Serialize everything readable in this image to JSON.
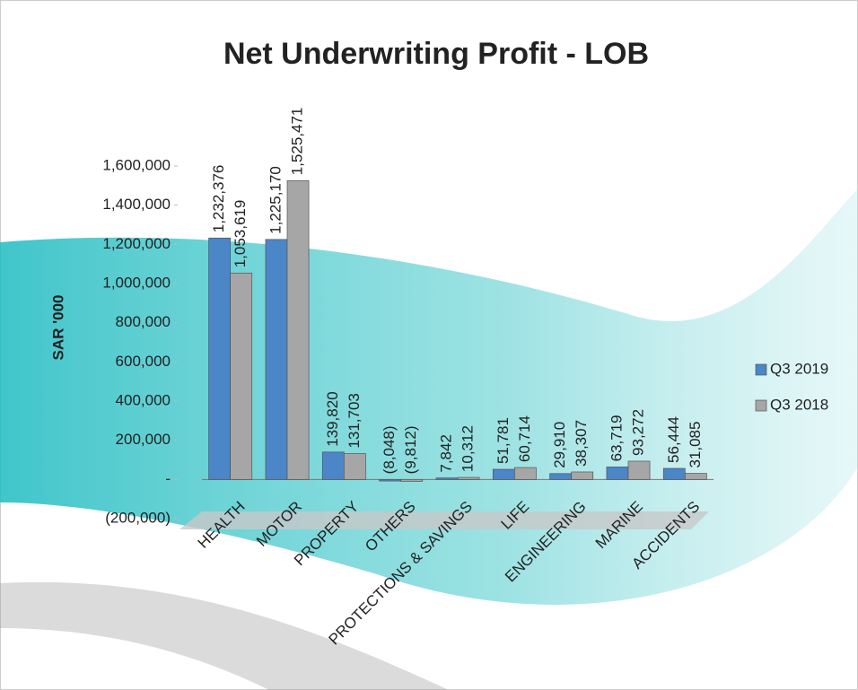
{
  "chart_data": {
    "type": "bar",
    "title": "Net Underwriting Profit - LOB",
    "y_label": "SAR '000",
    "categories": [
      "HEALTH",
      "MOTOR",
      "PROPERTY",
      "OTHERS",
      "PROTECTIONS & SAVINGS",
      "LIFE",
      "ENGINEERING",
      "MARINE",
      "ACCIDENTS"
    ],
    "series": [
      {
        "name": "Q3 2019",
        "color": "#4a86c8",
        "values": [
          1232376,
          1225170,
          139820,
          -8048,
          7842,
          51781,
          29910,
          63719,
          56444
        ],
        "value_labels": [
          "1,232,376",
          "1,225,170",
          "139,820",
          "(8,048)",
          "7,842",
          "51,781",
          "29,910",
          "63,719",
          "56,444"
        ]
      },
      {
        "name": "Q3 2018",
        "color": "#a6a6a6",
        "values": [
          1053619,
          1525471,
          131703,
          -9812,
          10312,
          60714,
          38307,
          93272,
          31085
        ],
        "value_labels": [
          "1,053,619",
          "1,525,471",
          "131,703",
          "(9,812)",
          "10,312",
          "60,714",
          "38,307",
          "93,272",
          "31,085"
        ]
      }
    ],
    "ylim": [
      -200000,
      1600000
    ],
    "yticks": [
      {
        "value": -200000,
        "label": "(200,000)"
      },
      {
        "value": 0,
        "label": "-"
      },
      {
        "value": 200000,
        "label": "200,000"
      },
      {
        "value": 400000,
        "label": "400,000"
      },
      {
        "value": 600000,
        "label": "600,000"
      },
      {
        "value": 800000,
        "label": "800,000"
      },
      {
        "value": 1000000,
        "label": "1,000,000"
      },
      {
        "value": 1200000,
        "label": "1,200,000"
      },
      {
        "value": 1400000,
        "label": "1,400,000"
      },
      {
        "value": 1600000,
        "label": "1,600,000"
      }
    ],
    "legend": "right"
  }
}
